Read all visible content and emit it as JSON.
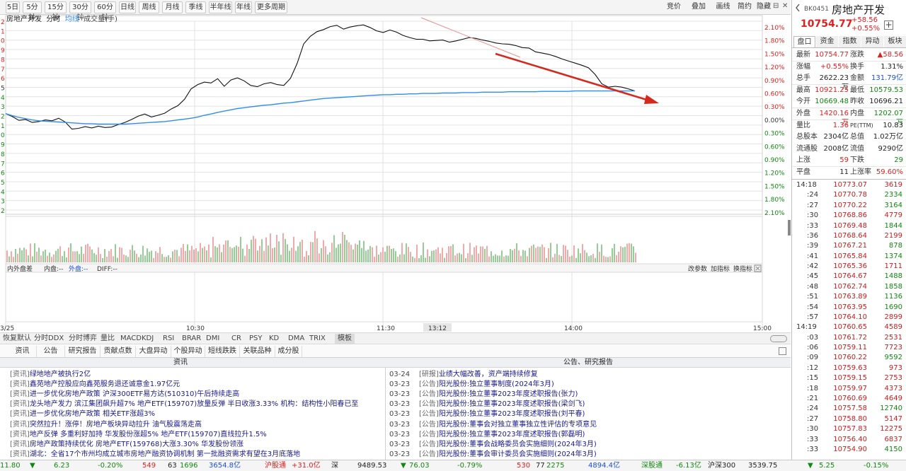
{
  "toolbar": {
    "periods": [
      "5日",
      "5分钟",
      "15分钟",
      "30分钟",
      "60分钟",
      "日线",
      "周线",
      "月线",
      "季线",
      "半年线",
      "年线",
      "更多周期"
    ],
    "right_buttons": [
      "竞价",
      "叠加",
      "画线",
      "简约",
      "隐藏"
    ],
    "window_icons": [
      "⊟",
      "✕"
    ]
  },
  "legend": {
    "name": "房地产开发",
    "timeshare": "分时",
    "avg": "均线",
    "volume": "成交量(手)"
  },
  "price_axis": {
    "left": [
      "2",
      "1",
      "0",
      "9",
      "8",
      "7",
      "6",
      "5",
      "4",
      "3",
      "2",
      "1",
      "0",
      "9",
      "8",
      "7",
      "6",
      "5",
      "4",
      "3",
      "2"
    ],
    "right": [
      "2.10%",
      "1.80%",
      "1.50%",
      "1.20%",
      "0.90%",
      "0.60%",
      "0.30%",
      "0.00%",
      "0.30%",
      "0.60%",
      "0.90%",
      "1.20%",
      "1.50%",
      "1.80%",
      "2.10%"
    ]
  },
  "time_axis": {
    "labels": [
      "3/25",
      "10:30",
      "11:30",
      "13:12",
      "14:00",
      "15:00"
    ]
  },
  "indicator": {
    "labels": [
      "内外盘差",
      "内盘:--",
      "外盘:--",
      "DIFF:--"
    ],
    "right": [
      "改参数",
      "加指标",
      "换指标"
    ]
  },
  "ind_tabs": [
    "恢复默认",
    "分时DDX",
    "分时博弈",
    "量比",
    "MACD",
    "KDJ",
    "RSI",
    "BRAR",
    "DMI",
    "CR",
    "PSY",
    "KD",
    "DMA",
    "TRIX",
    "模板"
  ],
  "news_tabs": [
    "资讯",
    "公告",
    "研究报告",
    "贡献点数",
    "大盘异动",
    "个股异动",
    "短线跌跌",
    "关联品种",
    "成分股"
  ],
  "news_head": {
    "left": "资讯",
    "right": "公告、研究报告"
  },
  "news_left": [
    {
      "tag": "[资讯]",
      "text": "绿地地产被执行2亿"
    },
    {
      "tag": "[资讯]",
      "text": "鑫苑地产控股应向鑫苑服务退还诚意金1.97亿元"
    },
    {
      "tag": "[资讯]",
      "text": "进一步优化房地产政策 沪深300ETF易方达(510310)午后持续走高"
    },
    {
      "tag": "[资讯]",
      "text": "龙头地产发力 滨江集团飙升超7% 地产ETF(159707)放量反弹 半日收涨3.33% 机构：结构性小阳春已至"
    },
    {
      "tag": "[资讯]",
      "text": "进一步优化房地产政策 相关ETF涨超3%"
    },
    {
      "tag": "[资讯]",
      "text": "突然拉升！涨停！房地产板块异动拉升 油气股震荡走高"
    },
    {
      "tag": "[资讯]",
      "text": "地产反弹 多重利好加持 华发股份涨超5% 地产ETF(159707)直线拉升1.5%"
    },
    {
      "tag": "[资讯]",
      "text": "房地产政策持续优化 房地产ETF(159768)大涨3.30% 华发股份领涨"
    },
    {
      "tag": "[资讯]",
      "text": "湖北：全省17个市州均成立城市房地产融资协调机制 第一批融资需求有望在3月底落地"
    }
  ],
  "news_right": [
    {
      "date": "03-24",
      "tag": "[研报]",
      "text": "业绩大幅改善，资产端持续修复"
    },
    {
      "date": "03-23",
      "tag": "[公告]",
      "text": "阳光股份:独立董事制度(2024年3月)"
    },
    {
      "date": "03-23",
      "tag": "[公告]",
      "text": "阳光股份:独立董事2023年度述职报告(张力)"
    },
    {
      "date": "03-23",
      "tag": "[公告]",
      "text": "阳光股份:独立董事2023年度述职报告(梁剑飞)"
    },
    {
      "date": "03-23",
      "tag": "[公告]",
      "text": "阳光股份:独立董事2023年度述职报告(刘平春)"
    },
    {
      "date": "03-23",
      "tag": "[公告]",
      "text": "阳光股份:董事会对独立董事独立性评估的专项意见"
    },
    {
      "date": "03-23",
      "tag": "[公告]",
      "text": "阳光股份:独立董事2023年度述职报告(郭磊明)"
    },
    {
      "date": "03-23",
      "tag": "[公告]",
      "text": "阳光股份:董事会战略委员会实施细则(2024年3月)"
    },
    {
      "date": "03-23",
      "tag": "[公告]",
      "text": "阳光股份:董事会审计委员会实施细则(2024年3月)"
    }
  ],
  "status": [
    {
      "t": "11.80",
      "c": "green"
    },
    {
      "t": "▼",
      "c": "green"
    },
    {
      "t": "6.23",
      "c": "green"
    },
    {
      "t": "-0.20%",
      "c": "green"
    },
    {
      "t": "549",
      "c": "red"
    },
    {
      "t": "63",
      "c": "dark"
    },
    {
      "t": "1696",
      "c": "green"
    },
    {
      "t": "3654.8亿",
      "c": "blue"
    },
    {
      "t": "沪股通",
      "c": "red"
    },
    {
      "t": "+31.0亿",
      "c": "red"
    },
    {
      "t": "深",
      "c": "dark"
    },
    {
      "t": "9489.53",
      "c": "dark"
    },
    {
      "t": "▼",
      "c": "green"
    },
    {
      "t": "76.03",
      "c": "green"
    },
    {
      "t": "-0.79%",
      "c": "green"
    },
    {
      "t": "530",
      "c": "red"
    },
    {
      "t": "77",
      "c": "dark"
    },
    {
      "t": "2275",
      "c": "green"
    },
    {
      "t": "4894.4亿",
      "c": "blue"
    },
    {
      "t": "深股通",
      "c": "green"
    },
    {
      "t": "-6.13亿",
      "c": "green"
    },
    {
      "t": "沪深300",
      "c": "dark"
    },
    {
      "t": "3539.75",
      "c": "dark"
    },
    {
      "t": "▼",
      "c": "green"
    },
    {
      "t": "5.25",
      "c": "green"
    },
    {
      "t": "-0.15%",
      "c": "green"
    }
  ],
  "stock": {
    "code": "BK0451",
    "name": "房地产开发",
    "price": "10754.77",
    "chg": "+58.56",
    "pct": "+0.55%"
  },
  "rtabs": [
    "盘口",
    "资金",
    "指数",
    "异动",
    "板块"
  ],
  "quote": [
    {
      "k": "最新",
      "v": "10754.77",
      "vc": "red",
      "k2": "涨跌",
      "v2": "▲58.56",
      "v2c": "red"
    },
    {
      "k": "涨幅",
      "v": "+0.55%",
      "vc": "red",
      "k2": "换手",
      "v2": "1.31%",
      "v2c": "dark"
    },
    {
      "k": "总手",
      "v": "2622.23万",
      "vc": "dark",
      "k2": "金额",
      "v2": "131.79亿",
      "v2c": "blue"
    },
    {
      "k": "最高",
      "v": "10921.25",
      "vc": "red",
      "k2": "最低",
      "v2": "10579.53",
      "v2c": "green"
    },
    {
      "k": "今开",
      "v": "10669.48",
      "vc": "green",
      "k2": "昨收",
      "v2": "10696.21",
      "v2c": "dark"
    },
    {
      "k": "外盘",
      "v": "1420.16万",
      "vc": "red",
      "k2": "内盘",
      "v2": "1202.07万",
      "v2c": "green"
    },
    {
      "k": "量比",
      "v": "1.36",
      "vc": "red",
      "k2": "PE(TTM)",
      "v2": "10.83",
      "v2c": "dark"
    },
    {
      "k": "总股本",
      "v": "2304亿",
      "vc": "dark",
      "k2": "总值",
      "v2": "1.02万亿",
      "v2c": "dark"
    },
    {
      "k": "流通股",
      "v": "2008亿",
      "vc": "dark",
      "k2": "流值",
      "v2": "9290亿",
      "v2c": "dark"
    },
    {
      "k": "上涨",
      "v": "59",
      "vc": "red",
      "k2": "下跌",
      "v2": "29",
      "v2c": "green"
    },
    {
      "k": "平盘",
      "v": "11",
      "vc": "dark",
      "k2": "上涨率",
      "v2": "59.60%",
      "v2c": "red"
    }
  ],
  "ticks": [
    {
      "t": "14:18",
      "p": "10773.07",
      "v": "3619"
    },
    {
      "t": ":24",
      "p": "10770.78",
      "v": "2334"
    },
    {
      "t": ":27",
      "p": "10770.22",
      "v": "3164"
    },
    {
      "t": ":30",
      "p": "10768.86",
      "v": "4779"
    },
    {
      "t": ":33",
      "p": "10769.48",
      "v": "1844"
    },
    {
      "t": ":36",
      "p": "10768.64",
      "v": "2199"
    },
    {
      "t": ":39",
      "p": "10767.21",
      "v": "878"
    },
    {
      "t": ":41",
      "p": "10765.84",
      "v": "1374"
    },
    {
      "t": ":42",
      "p": "10765.36",
      "v": "1711"
    },
    {
      "t": ":45",
      "p": "10764.67",
      "v": "1488"
    },
    {
      "t": ":48",
      "p": "10762.74",
      "v": "1858"
    },
    {
      "t": ":51",
      "p": "10763.89",
      "v": "1136"
    },
    {
      "t": ":54",
      "p": "10763.95",
      "v": "1690"
    },
    {
      "t": ":57",
      "p": "10764.10",
      "v": "2899"
    },
    {
      "t": "14:19",
      "p": "10760.65",
      "v": "4589"
    },
    {
      "t": ":03",
      "p": "10761.72",
      "v": "2531"
    },
    {
      "t": ":06",
      "p": "10759.11",
      "v": "7723"
    },
    {
      "t": ":09",
      "p": "10760.22",
      "v": "9592"
    },
    {
      "t": ":12",
      "p": "10759.63",
      "v": "973"
    },
    {
      "t": ":15",
      "p": "10759.15",
      "v": "2753"
    },
    {
      "t": ":18",
      "p": "10759.97",
      "v": "4373"
    },
    {
      "t": ":21",
      "p": "10760.69",
      "v": "4649"
    },
    {
      "t": ":24",
      "p": "10757.58",
      "v": "12740"
    },
    {
      "t": ":27",
      "p": "10758.80",
      "v": "5147"
    },
    {
      "t": ":30",
      "p": "10757.83",
      "v": "12275"
    },
    {
      "t": ":33",
      "p": "10756.40",
      "v": "6837"
    },
    {
      "t": ":33",
      "p": "10754.90",
      "v": "4150"
    }
  ],
  "colors": {
    "up": "#e02020",
    "down": "#118811",
    "avg": "#2f8fe8",
    "price": "#111111",
    "arrow": "#d42a1e"
  },
  "chart_data": {
    "type": "line",
    "title": "",
    "xlabel": "",
    "ylabel": "",
    "prev_close": 10696.21,
    "ylim": [
      10471.59,
      10920.83
    ],
    "x_labels": [
      "10:30",
      "11:30",
      "13:12",
      "14:00",
      "15:00"
    ],
    "series": [
      {
        "values": [
          10701,
          10694,
          10685,
          10687,
          10680,
          10682,
          10686,
          10684,
          10690,
          10681,
          10664,
          10666,
          10670,
          10667,
          10671,
          10668,
          10669,
          10675,
          10680,
          10687,
          10695,
          10700,
          10693,
          10697,
          10702,
          10712,
          10720,
          10735,
          10760,
          10770,
          10776,
          10774,
          10784,
          10766,
          10781,
          10786,
          10779,
          10768,
          10765,
          10772,
          10775,
          10770,
          10768,
          10785,
          10820,
          10867,
          10885,
          10896,
          10901,
          10908,
          10911,
          10902,
          10907,
          10910,
          10912,
          10906,
          10898,
          10894,
          10900,
          10895,
          10887,
          10882,
          10878,
          10878,
          10874,
          10875,
          10876,
          10871,
          10874,
          10878,
          10882,
          10880,
          10876,
          10873,
          10869,
          10867,
          10866,
          10863,
          10858,
          10857,
          10848,
          10845,
          10842,
          10837,
          10831,
          10826,
          10821,
          10816,
          10810,
          10794,
          10772,
          10764,
          10766,
          10764,
          10760,
          10755
        ]
      },
      {
        "values": [
          10701,
          10696,
          10692,
          10689,
          10686,
          10684,
          10683,
          10682,
          10681,
          10680,
          10679,
          10678,
          10677,
          10677,
          10676,
          10676,
          10676,
          10676,
          10676,
          10677,
          10678,
          10679,
          10680,
          10681,
          10682,
          10684,
          10686,
          10688,
          10690,
          10693,
          10697,
          10700,
          10704,
          10707,
          10710,
          10713,
          10715,
          10717,
          10719,
          10721,
          10722,
          10724,
          10726,
          10727,
          10729,
          10731,
          10733,
          10735,
          10737,
          10738,
          10739,
          10740,
          10741,
          10742,
          10743,
          10744,
          10745,
          10746,
          10746,
          10747,
          10747,
          10748,
          10748,
          10749,
          10749,
          10749,
          10750,
          10750,
          10750,
          10751,
          10751,
          10751,
          10752,
          10752,
          10752,
          10752,
          10753,
          10753,
          10753,
          10753,
          10753,
          10754,
          10754,
          10754,
          10754,
          10754,
          10755,
          10755,
          10755,
          10755,
          10755,
          10755,
          10755,
          10755,
          10755,
          10755
        ]
      }
    ]
  }
}
